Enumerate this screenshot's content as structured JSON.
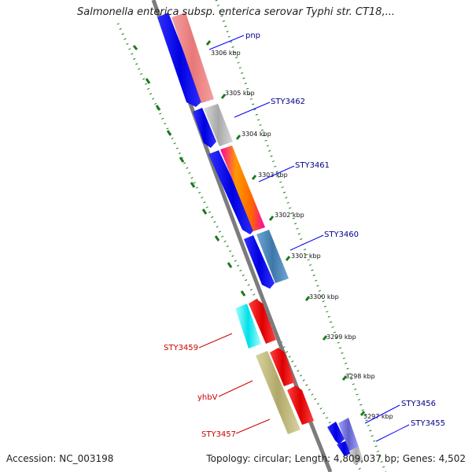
{
  "title": "Salmonella enterica subsp. enterica serovar Typhi str. CT18,...",
  "footer": {
    "accession": "Accession: NC_003198",
    "topology": "Topology: circular; Length: 4,809,037 bp; Genes: 4,502"
  },
  "colors": {
    "backbone": "#808080",
    "cds_forward": "#0000ff",
    "tick_green": "#1a7a1a",
    "label_blue": "#00008b",
    "label_red": "#cc0000"
  },
  "kbp_ticks": [
    "3306 kbp",
    "3305 kbp",
    "3304 kbp",
    "3303 kbp",
    "3302 kbp",
    "3301 kbp",
    "3300 kbp",
    "3299 kbp",
    "3298 kbp",
    "3297 kbp"
  ],
  "gene_labels": [
    {
      "text": "pnp",
      "color": "blue"
    },
    {
      "text": "STY3462",
      "color": "blue"
    },
    {
      "text": "STY3461",
      "color": "blue"
    },
    {
      "text": "STY3460",
      "color": "blue"
    },
    {
      "text": "STY3459",
      "color": "red"
    },
    {
      "text": "yhbV",
      "color": "red"
    },
    {
      "text": "STY3457",
      "color": "red"
    },
    {
      "text": "STY3456",
      "color": "blue"
    },
    {
      "text": "STY3455",
      "color": "blue"
    }
  ]
}
